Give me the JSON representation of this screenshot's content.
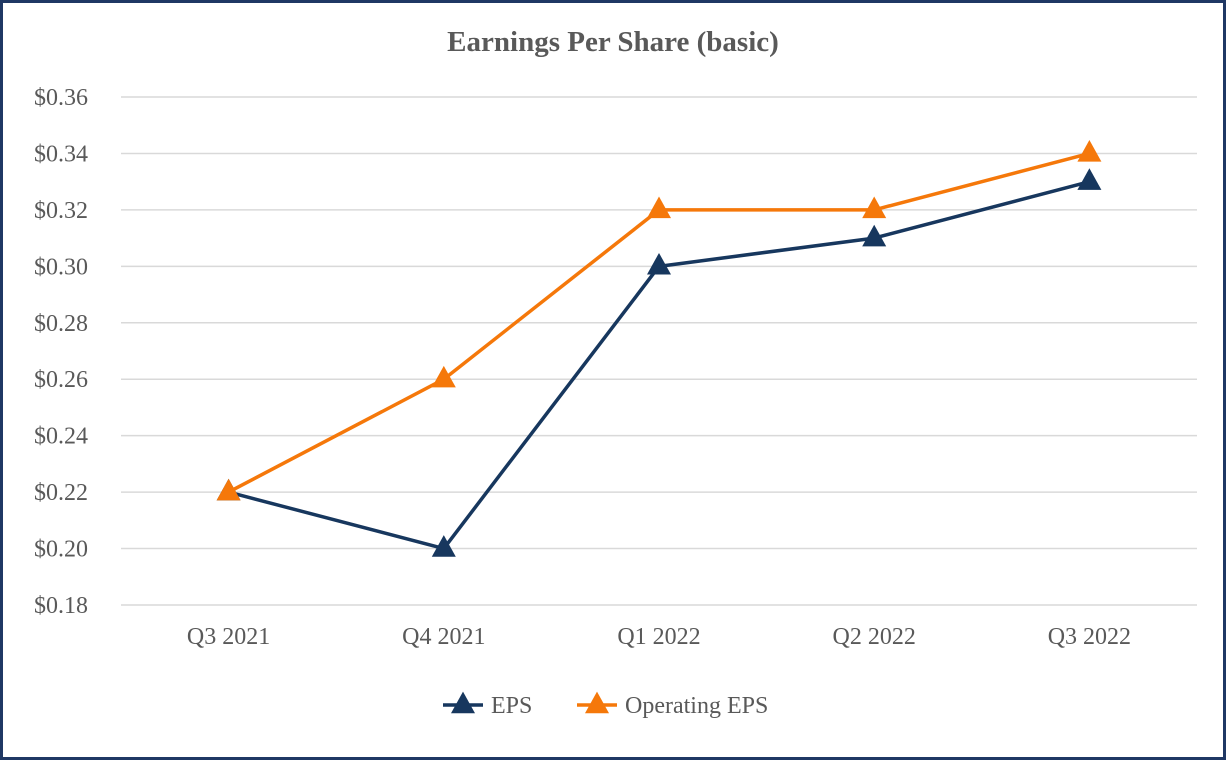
{
  "chart_data": {
    "type": "line",
    "title": "Earnings Per Share (basic)",
    "xlabel": "",
    "ylabel": "",
    "categories": [
      "Q3 2021",
      "Q4 2021",
      "Q1 2022",
      "Q2 2022",
      "Q3 2022"
    ],
    "ylim": [
      0.18,
      0.36
    ],
    "yticks": [
      0.18,
      0.2,
      0.22,
      0.24,
      0.26,
      0.28,
      0.3,
      0.32,
      0.34,
      0.36
    ],
    "ytick_labels": [
      "$0.18",
      "$0.20",
      "$0.22",
      "$0.24",
      "$0.26",
      "$0.28",
      "$0.30",
      "$0.32",
      "$0.34",
      "$0.36"
    ],
    "grid": true,
    "legend_position": "bottom-center",
    "marker": "triangle",
    "series": [
      {
        "name": "EPS",
        "values": [
          0.22,
          0.2,
          0.3,
          0.31,
          0.33
        ],
        "color": "#17375e"
      },
      {
        "name": "Operating EPS",
        "values": [
          0.22,
          0.26,
          0.32,
          0.32,
          0.34
        ],
        "color": "#f5780a"
      }
    ]
  },
  "frame": {
    "border_color": "#1f3864"
  }
}
